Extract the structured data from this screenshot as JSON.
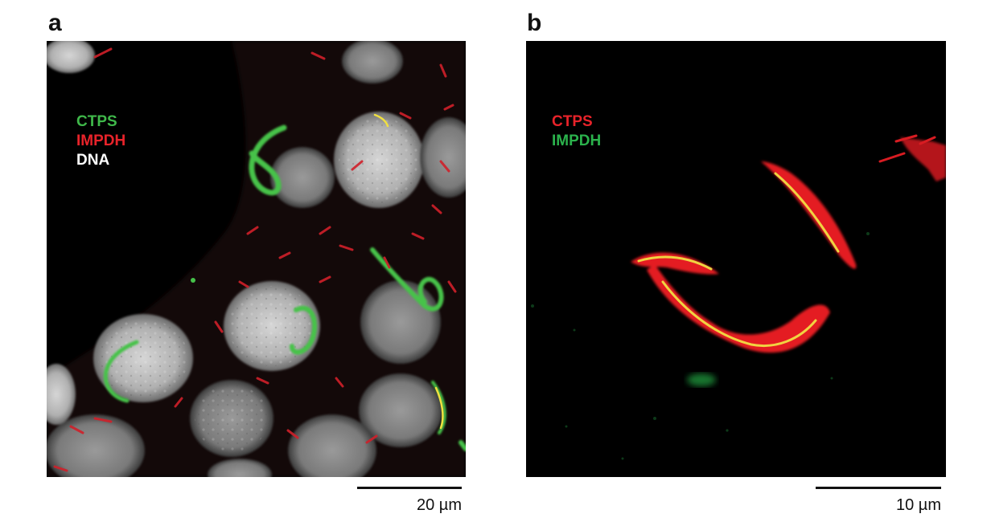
{
  "figure": {
    "panels": [
      {
        "letter": "a",
        "legend": [
          {
            "text": "CTPS",
            "color": "#3fb84a"
          },
          {
            "text": "IMPDH",
            "color": "#e8232a"
          },
          {
            "text": "DNA",
            "color": "#ffffff"
          }
        ],
        "scale_label": "20 µm"
      },
      {
        "letter": "b",
        "legend": [
          {
            "text": "CTPS",
            "color": "#e8232a"
          },
          {
            "text": "IMPDH",
            "color": "#2bb24c"
          }
        ],
        "scale_label": "10 µm"
      }
    ]
  }
}
